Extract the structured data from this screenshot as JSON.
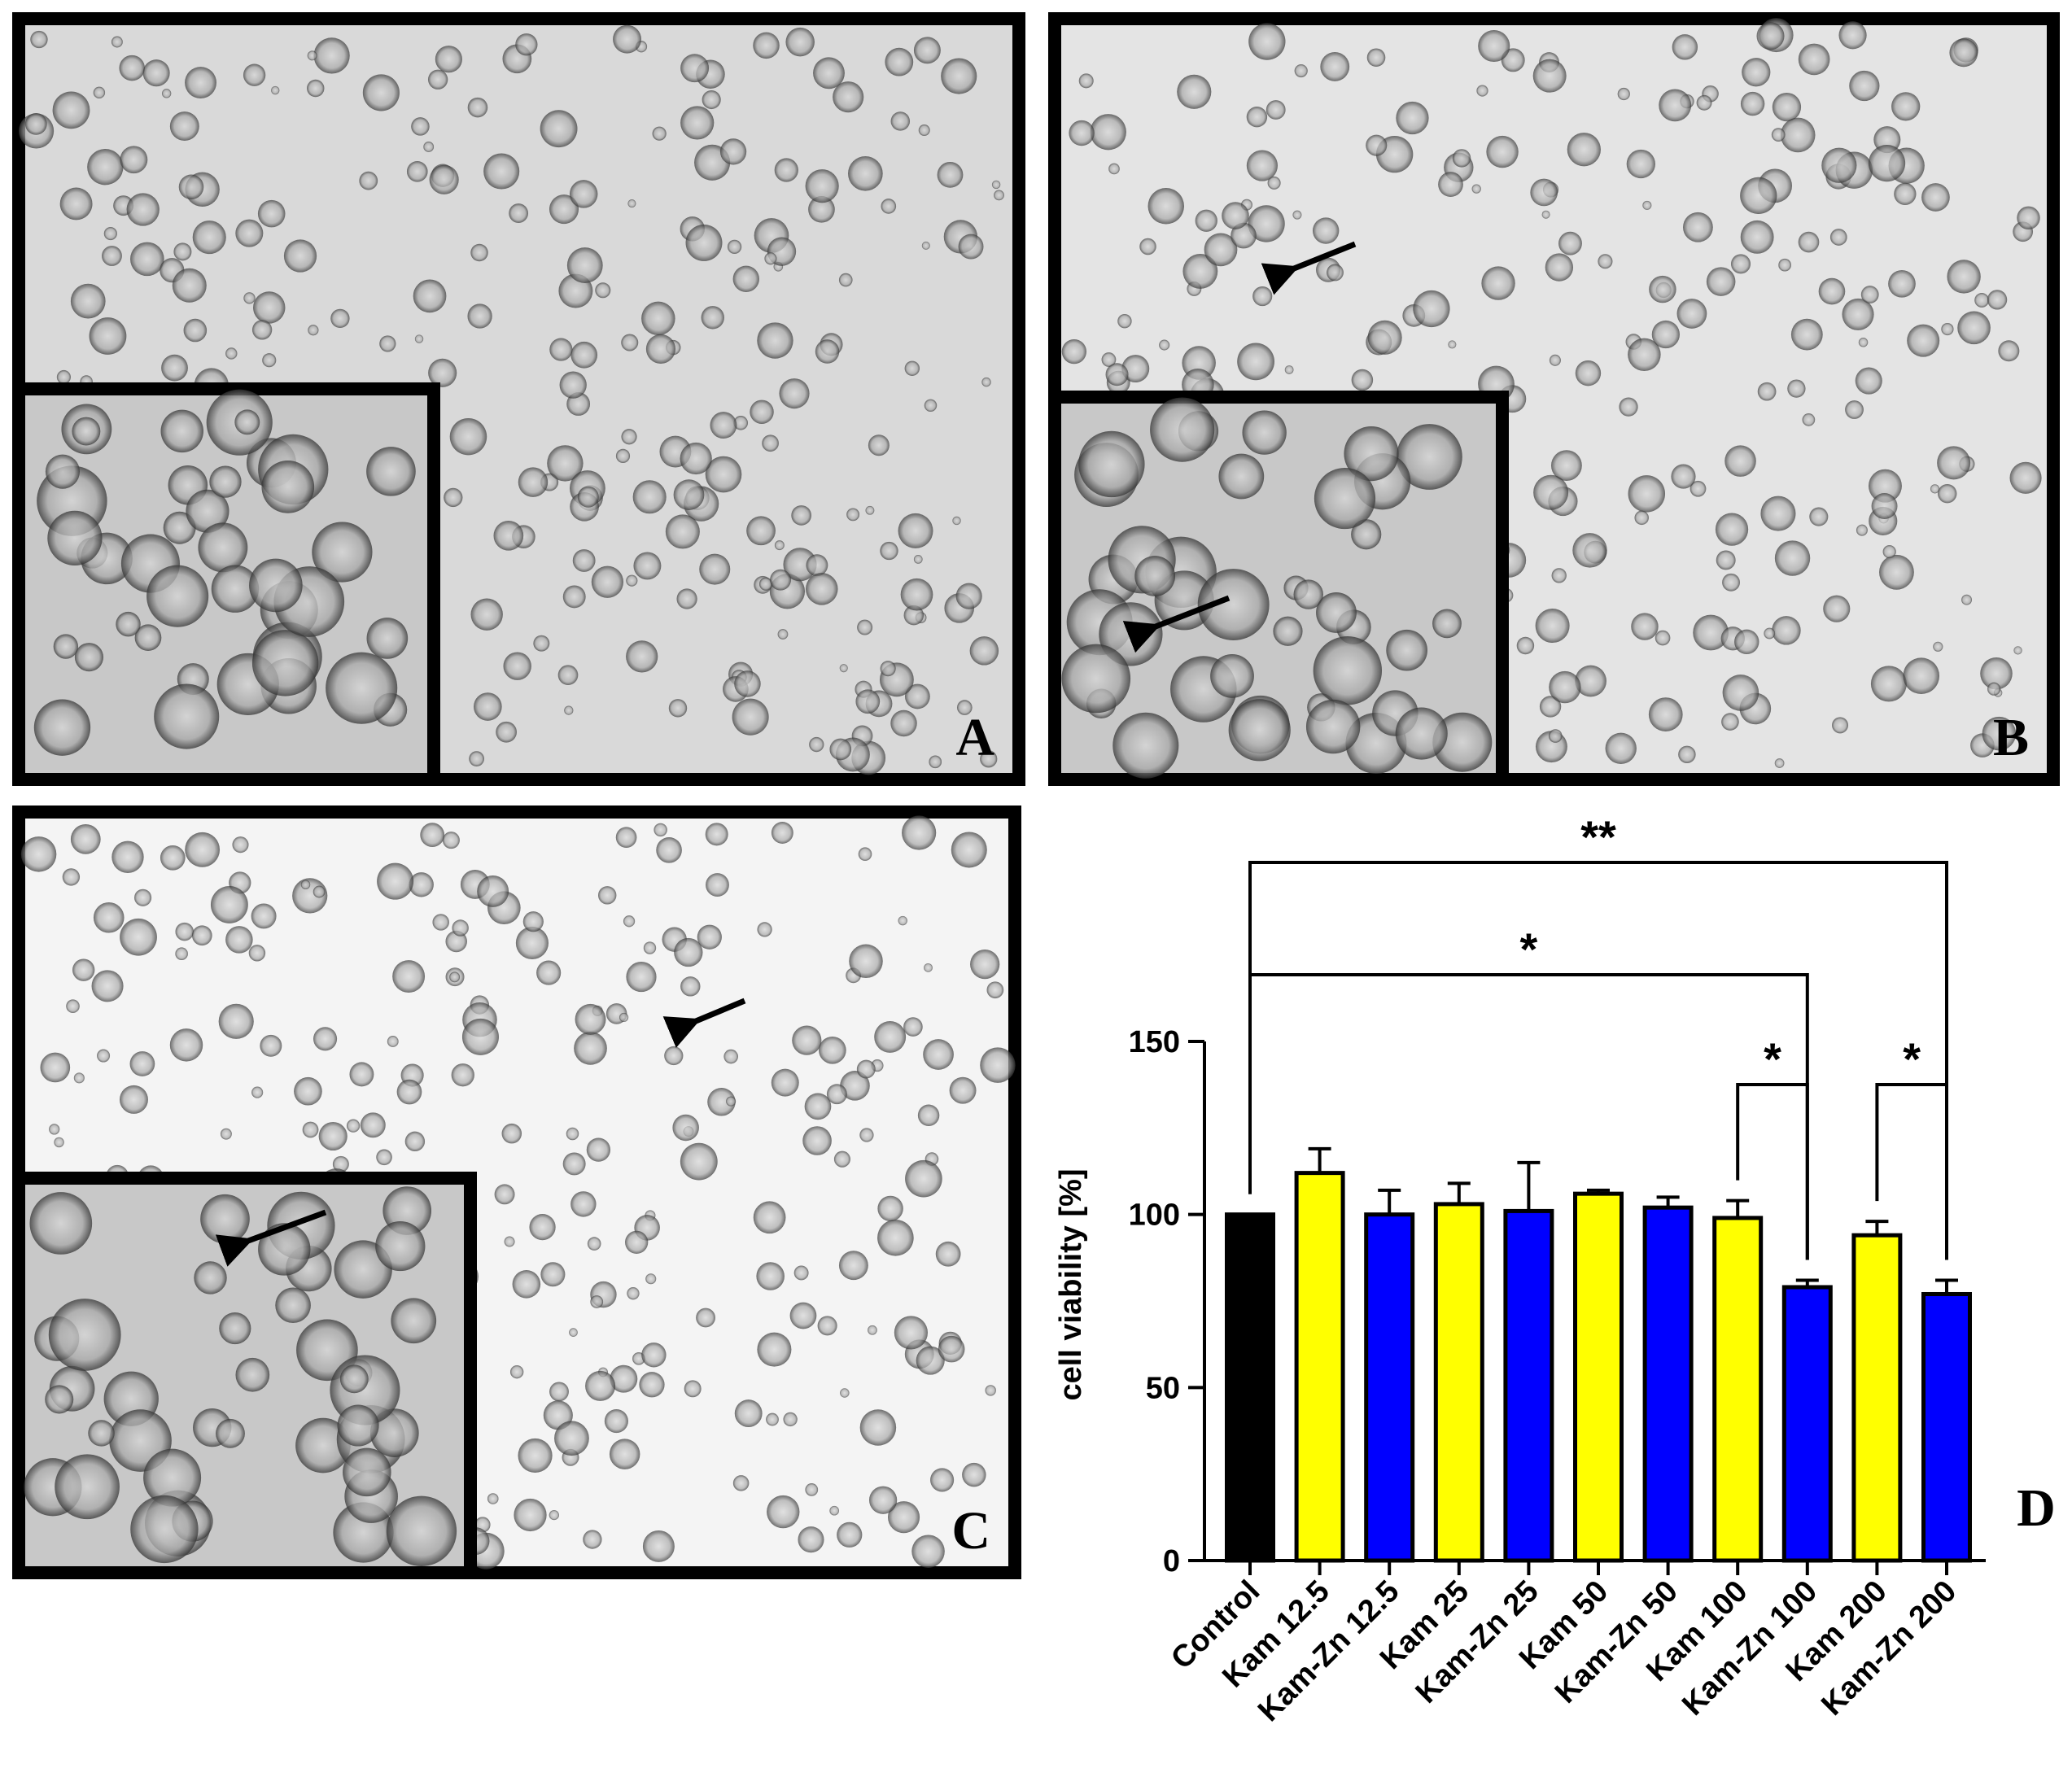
{
  "panels": [
    "A",
    "B",
    "C",
    "D"
  ],
  "chart_data": {
    "type": "bar",
    "ylabel": "cell viability [%]",
    "categories": [
      "Control",
      "Kam 12.5",
      "Kam-Zn 12.5",
      "Kam 25",
      "Kam-Zn 25",
      "Kam 50",
      "Kam-Zn 50",
      "Kam 100",
      "Kam-Zn 100",
      "Kam 200",
      "Kam-Zn 200"
    ],
    "values": [
      100,
      112,
      100,
      103,
      101,
      106,
      102,
      99,
      79,
      94,
      77
    ],
    "errors": [
      0,
      7,
      7,
      6,
      14,
      1,
      3,
      5,
      2,
      4,
      4
    ],
    "colors": [
      "#000000",
      "#ffff00",
      "#0000ff",
      "#ffff00",
      "#0000ff",
      "#ffff00",
      "#0000ff",
      "#ffff00",
      "#0000ff",
      "#ffff00",
      "#0000ff"
    ],
    "ylim": [
      0,
      150
    ],
    "yticks": [
      0,
      50,
      100,
      150
    ],
    "significance": [
      {
        "between": [
          "Control",
          "Kam-Zn 200"
        ],
        "label": "**"
      },
      {
        "between": [
          "Control",
          "Kam-Zn 100"
        ],
        "label": "*"
      },
      {
        "between": [
          "Kam 100",
          "Kam-Zn 100"
        ],
        "label": "*"
      },
      {
        "between": [
          "Kam 200",
          "Kam-Zn 200"
        ],
        "label": "*"
      }
    ]
  }
}
